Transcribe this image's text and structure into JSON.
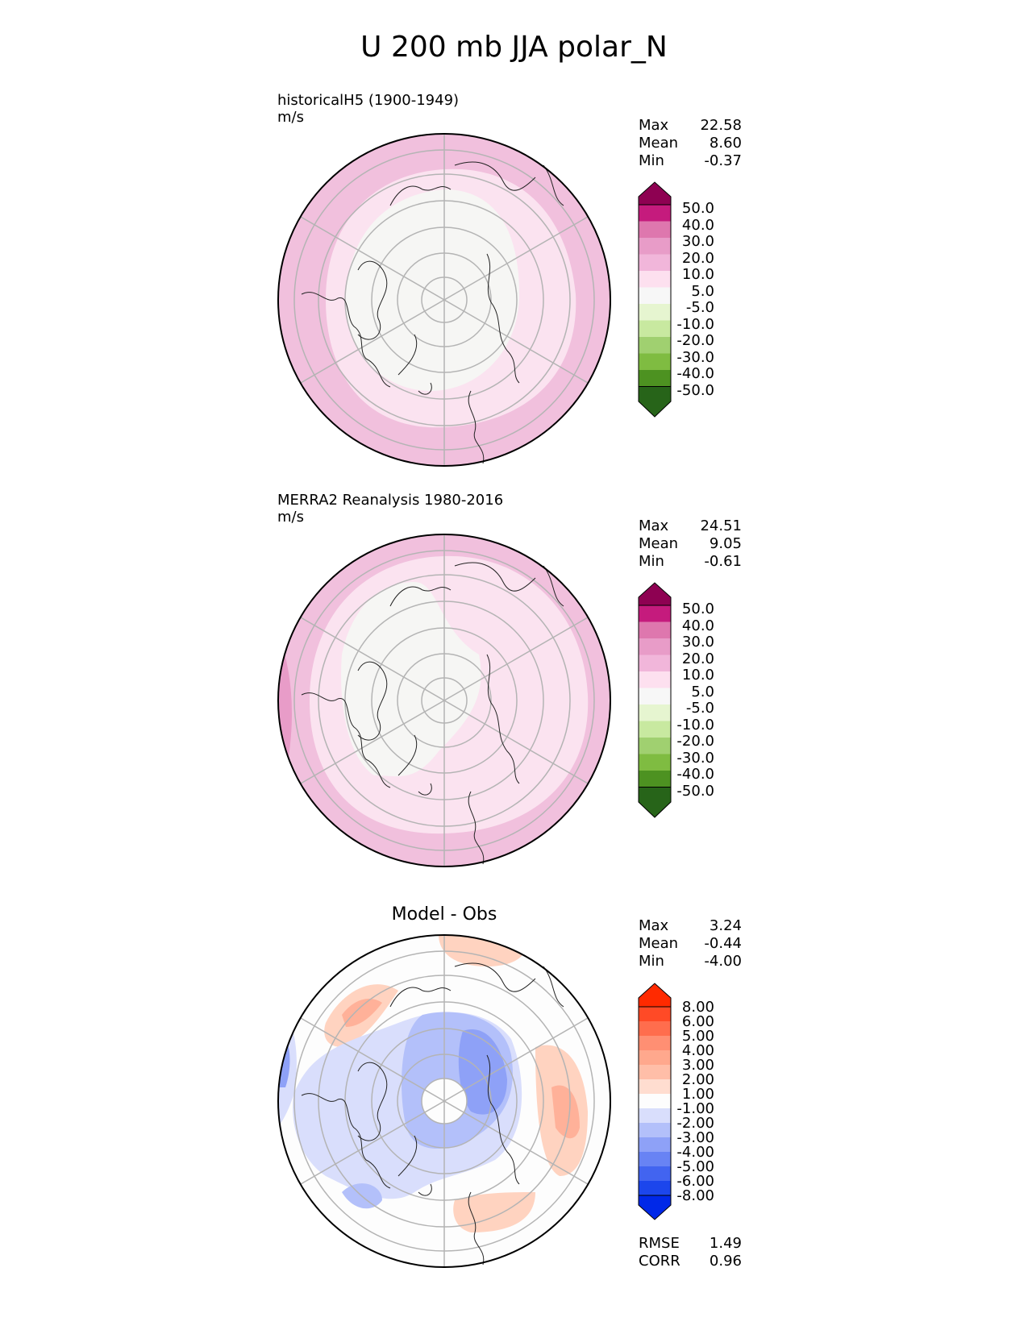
{
  "figure": {
    "title": "U 200 mb JJA polar_N"
  },
  "panels": [
    {
      "name": "test",
      "title_line1": "historicalH5 (1900-1949)",
      "title_line2": "m/s",
      "stats": {
        "max_label": "Max",
        "max": "22.58",
        "mean_label": "Mean",
        "mean": "8.60",
        "min_label": "Min",
        "min": "-0.37"
      },
      "colorbar_ticks": [
        "50.0",
        "40.0",
        "30.0",
        "20.0",
        "10.0",
        "5.0",
        "-5.0",
        "-10.0",
        "-20.0",
        "-30.0",
        "-40.0",
        "-50.0"
      ],
      "colorbar_colors": [
        "#8e0152",
        "#c51b7d",
        "#de77ae",
        "#f1b6da",
        "#fde0ef",
        "#f7f7f7",
        "#f7f7f7",
        "#e6f5d0",
        "#b8e186",
        "#7fbc41",
        "#4d9221",
        "#276419"
      ]
    },
    {
      "name": "ref",
      "title_line1": "MERRA2 Reanalysis 1980-2016",
      "title_line2": "m/s",
      "stats": {
        "max_label": "Max",
        "max": "24.51",
        "mean_label": "Mean",
        "mean": "9.05",
        "min_label": "Min",
        "min": "-0.61"
      },
      "colorbar_ticks": [
        "50.0",
        "40.0",
        "30.0",
        "20.0",
        "10.0",
        "5.0",
        "-5.0",
        "-10.0",
        "-20.0",
        "-30.0",
        "-40.0",
        "-50.0"
      ]
    },
    {
      "name": "diff",
      "title": "Model - Obs",
      "stats": {
        "max_label": "Max",
        "max": "3.24",
        "mean_label": "Mean",
        "mean": "-0.44",
        "min_label": "Min",
        "min": "-4.00"
      },
      "colorbar_ticks": [
        "8.00",
        "6.00",
        "5.00",
        "4.00",
        "3.00",
        "2.00",
        "1.00",
        "-1.00",
        "-2.00",
        "-3.00",
        "-4.00",
        "-5.00",
        "-6.00",
        "-8.00"
      ],
      "colorbar_colors": [
        "#ff2a00",
        "#ff4a26",
        "#ff6d4d",
        "#ff8f73",
        "#ffb199",
        "#ffd3c0",
        "#fdfdfd",
        "#d9defc",
        "#b3c0fa",
        "#8ea1f7",
        "#6883f4",
        "#4264f0",
        "#1c46ec",
        "#0028e8"
      ],
      "metrics": {
        "rmse_label": "RMSE",
        "rmse": "1.49",
        "corr_label": "CORR",
        "corr": "0.96"
      }
    }
  ]
}
